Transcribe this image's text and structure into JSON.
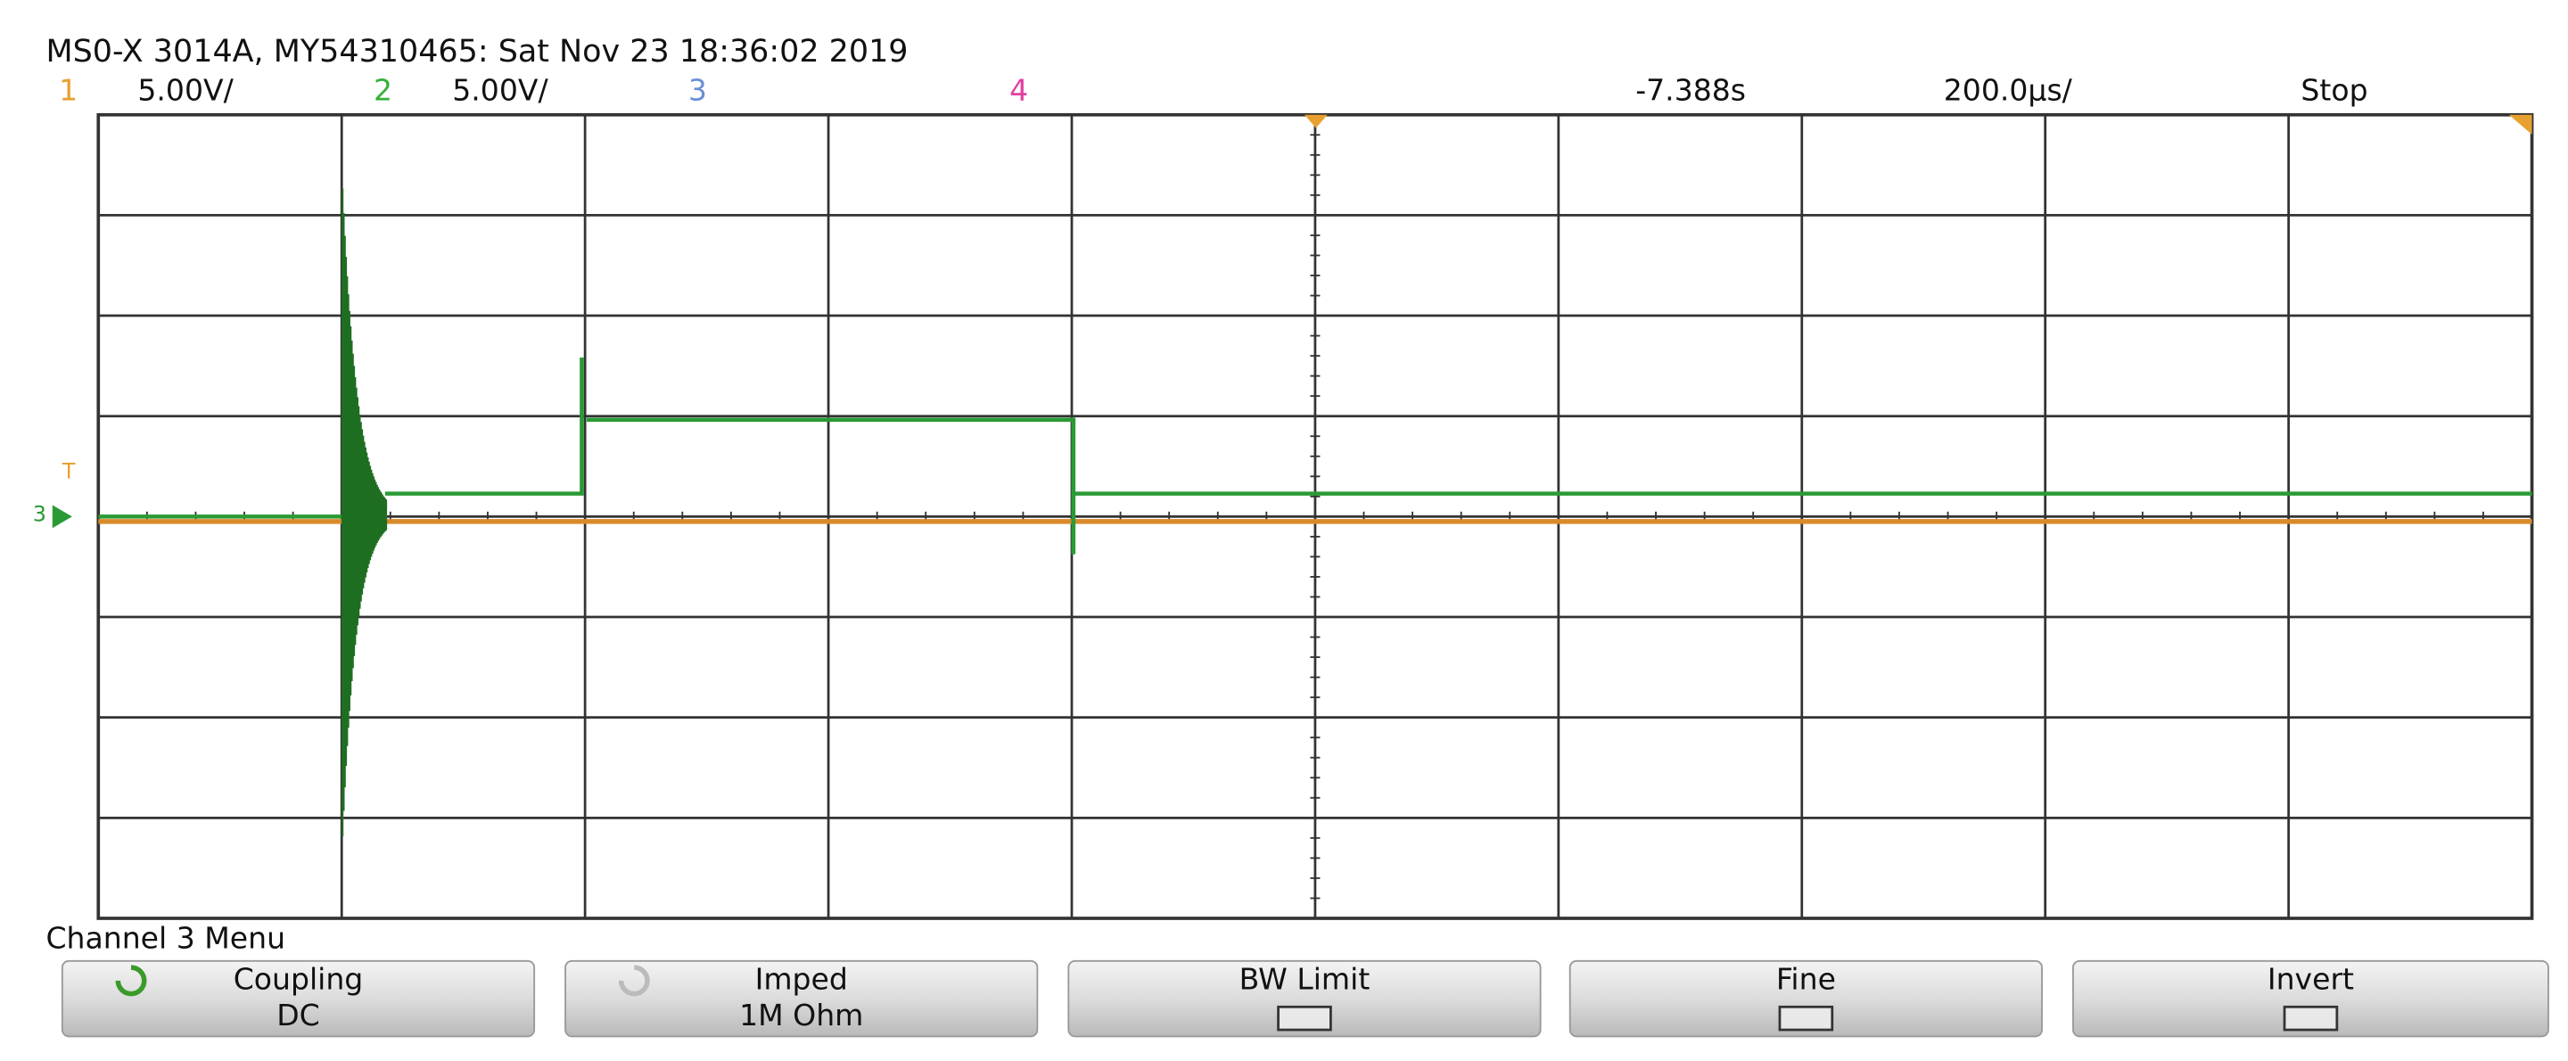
{
  "header": {
    "title": "MS0-X 3014A, MY54310465: Sat Nov 23 18:36:02 2019"
  },
  "status_bar": {
    "channels": [
      {
        "number": "1",
        "scale": "5.00V/"
      },
      {
        "number": "2",
        "scale": "5.00V/"
      },
      {
        "number": "3"
      },
      {
        "number": "4"
      }
    ],
    "delay": "-7.388s",
    "timebase": "200.0µs/",
    "run_state": "Stop"
  },
  "markers": {
    "trigger": "T",
    "channel": "3"
  },
  "menu": {
    "title": "Channel 3 Menu",
    "softkeys": [
      {
        "label": "Coupling",
        "value": "DC"
      },
      {
        "label": "Imped",
        "value": "1M Ohm"
      },
      {
        "label": "BW Limit"
      },
      {
        "label": "Fine"
      },
      {
        "label": "Invert"
      }
    ]
  }
}
